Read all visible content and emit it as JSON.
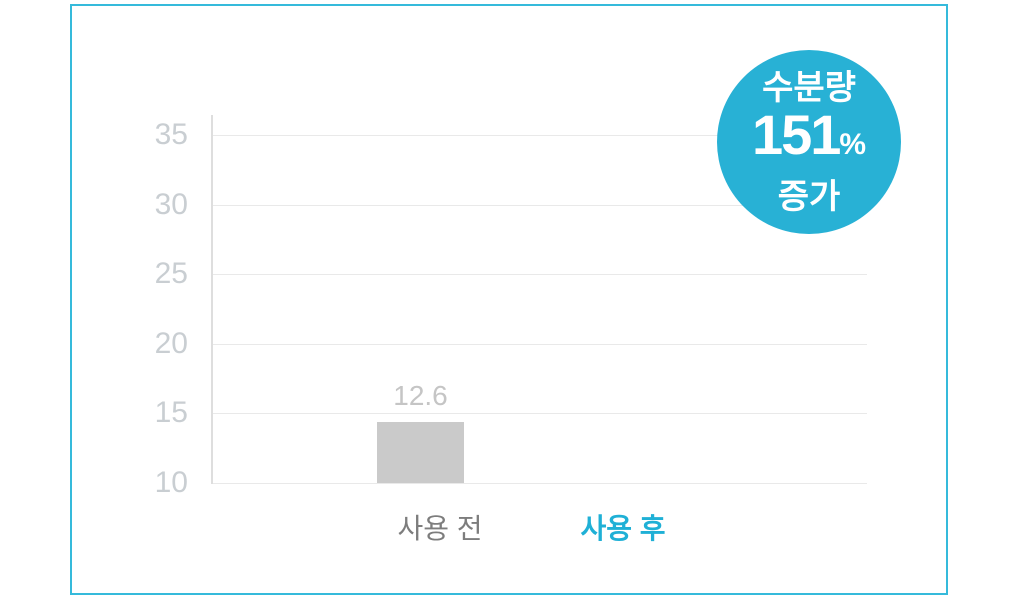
{
  "badge": {
    "line1": "수분량",
    "number": "151",
    "percent_sign": "%",
    "line2": "증가"
  },
  "chart_data": {
    "type": "bar",
    "categories": [
      "사용 전",
      "사용 후"
    ],
    "values": [
      12.6,
      null
    ],
    "value_labels": [
      "12.6",
      ""
    ],
    "yticks": [
      10,
      15,
      20,
      25,
      30,
      35
    ],
    "ylim": [
      10,
      36.5
    ],
    "grid": "horizontal",
    "legend": "none",
    "title": "",
    "xlabel": "",
    "ylabel": "",
    "highlight_category_index": 1,
    "annotation": "수분량 151% 증가"
  },
  "colors": {
    "border_teal": "#35badb",
    "badge_teal": "#28b1d5",
    "accent_teal": "#1fb0d6",
    "bar_gray": "#cacaca",
    "bar_value_gray": "#c5c5c5",
    "tick_gray": "#c9ced2",
    "category_gray": "#7d7d7d",
    "gridline_gray": "#e9e9e9"
  }
}
